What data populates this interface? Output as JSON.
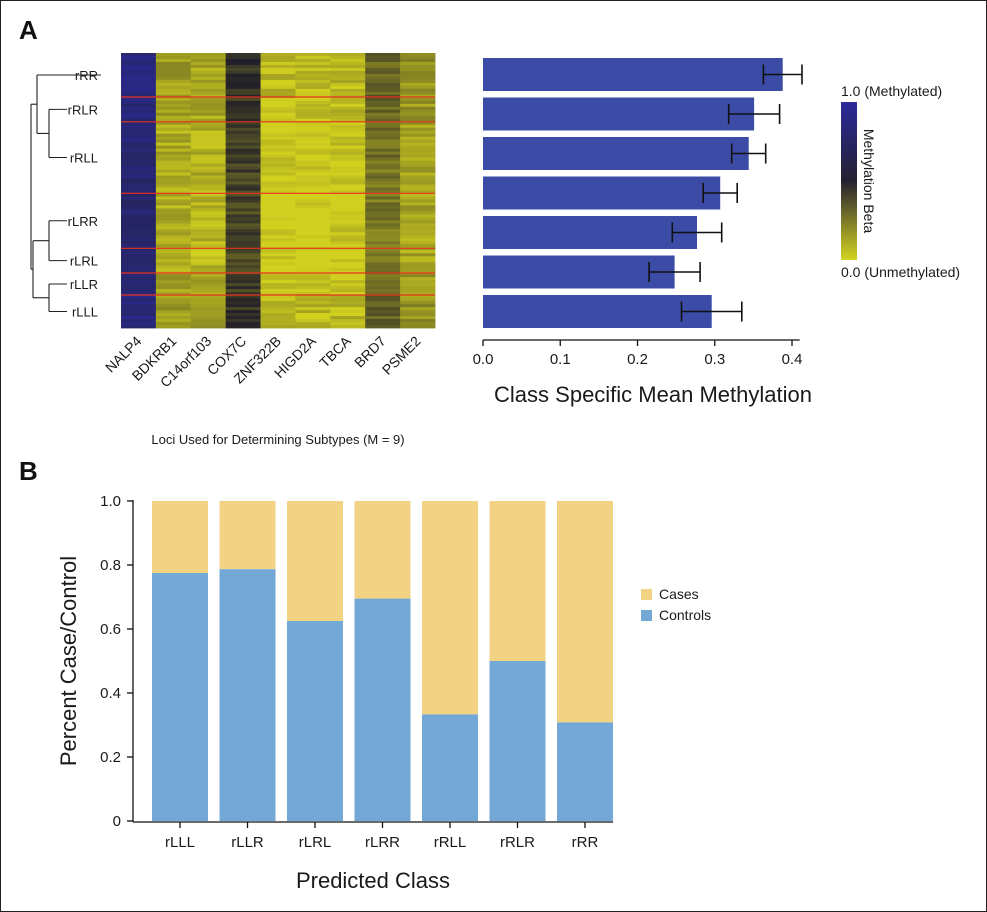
{
  "panels": {
    "a": "A",
    "b": "B"
  },
  "chart_data": [
    {
      "type": "heatmap",
      "columns": [
        "NALP4",
        "BDKRB1",
        "C14orf103",
        "COX7C",
        "ZNF322B",
        "HIGD2A",
        "TBCA",
        "BRD7",
        "PSME2"
      ],
      "row_classes": [
        "rRR",
        "rRLR",
        "rRLL",
        "rLRR",
        "rLRL",
        "rLLR",
        "rLLL"
      ],
      "class_row_fraction": [
        0.16,
        0.09,
        0.26,
        0.2,
        0.09,
        0.08,
        0.12
      ],
      "column_mean_beta": [
        0.83,
        0.12,
        0.1,
        0.42,
        0.03,
        0.03,
        0.04,
        0.28,
        0.15
      ],
      "xlabel": "Loci Used for Determining Subtypes (M = 9)",
      "dendrogram_labels": [
        "rRR",
        "rRLR",
        "rRLL",
        "rLRR",
        "rLRL",
        "rLLR",
        "rLLL"
      ],
      "legend": {
        "title": "Methylation Beta",
        "max_label": "1.0 (Methylated)",
        "min_label": "0.0 (Unmethylated)",
        "colors": [
          "#2a2a9a",
          "#242030",
          "#d4d420"
        ]
      },
      "separator_color": "#e8321e"
    },
    {
      "type": "bar",
      "orientation": "horizontal",
      "categories": [
        "rRR",
        "rRLR",
        "rRLL",
        "rLRR",
        "rLRL",
        "rLLR",
        "rLLL"
      ],
      "values": [
        0.388,
        0.351,
        0.344,
        0.307,
        0.277,
        0.248,
        0.296
      ],
      "error": [
        0.025,
        0.033,
        0.022,
        0.022,
        0.032,
        0.033,
        0.039
      ],
      "xlim": [
        0,
        0.42
      ],
      "xticks": [
        "0.0",
        "0.1",
        "0.2",
        "0.3",
        "0.4"
      ],
      "xlabel": "Class Specific Mean Methylation",
      "color": "#3b4ba6"
    },
    {
      "type": "bar",
      "stacked": true,
      "categories": [
        "rLLL",
        "rLLR",
        "rLRL",
        "rLRR",
        "rRLL",
        "rRLR",
        "rRR"
      ],
      "series": [
        {
          "name": "Controls",
          "values": [
            0.775,
            0.787,
            0.625,
            0.695,
            0.333,
            0.5,
            0.308
          ],
          "color": "#72a7d6"
        },
        {
          "name": "Cases",
          "values": [
            0.225,
            0.213,
            0.375,
            0.305,
            0.667,
            0.5,
            0.692
          ],
          "color": "#f2d384"
        }
      ],
      "legend_order": [
        "Cases",
        "Controls"
      ],
      "ylim": [
        0,
        1.0
      ],
      "yticks": [
        "0",
        "0.2",
        "0.4",
        "0.6",
        "0.8",
        "1.0"
      ],
      "xlabel": "Predicted Class",
      "ylabel": "Percent Case/Control"
    }
  ]
}
